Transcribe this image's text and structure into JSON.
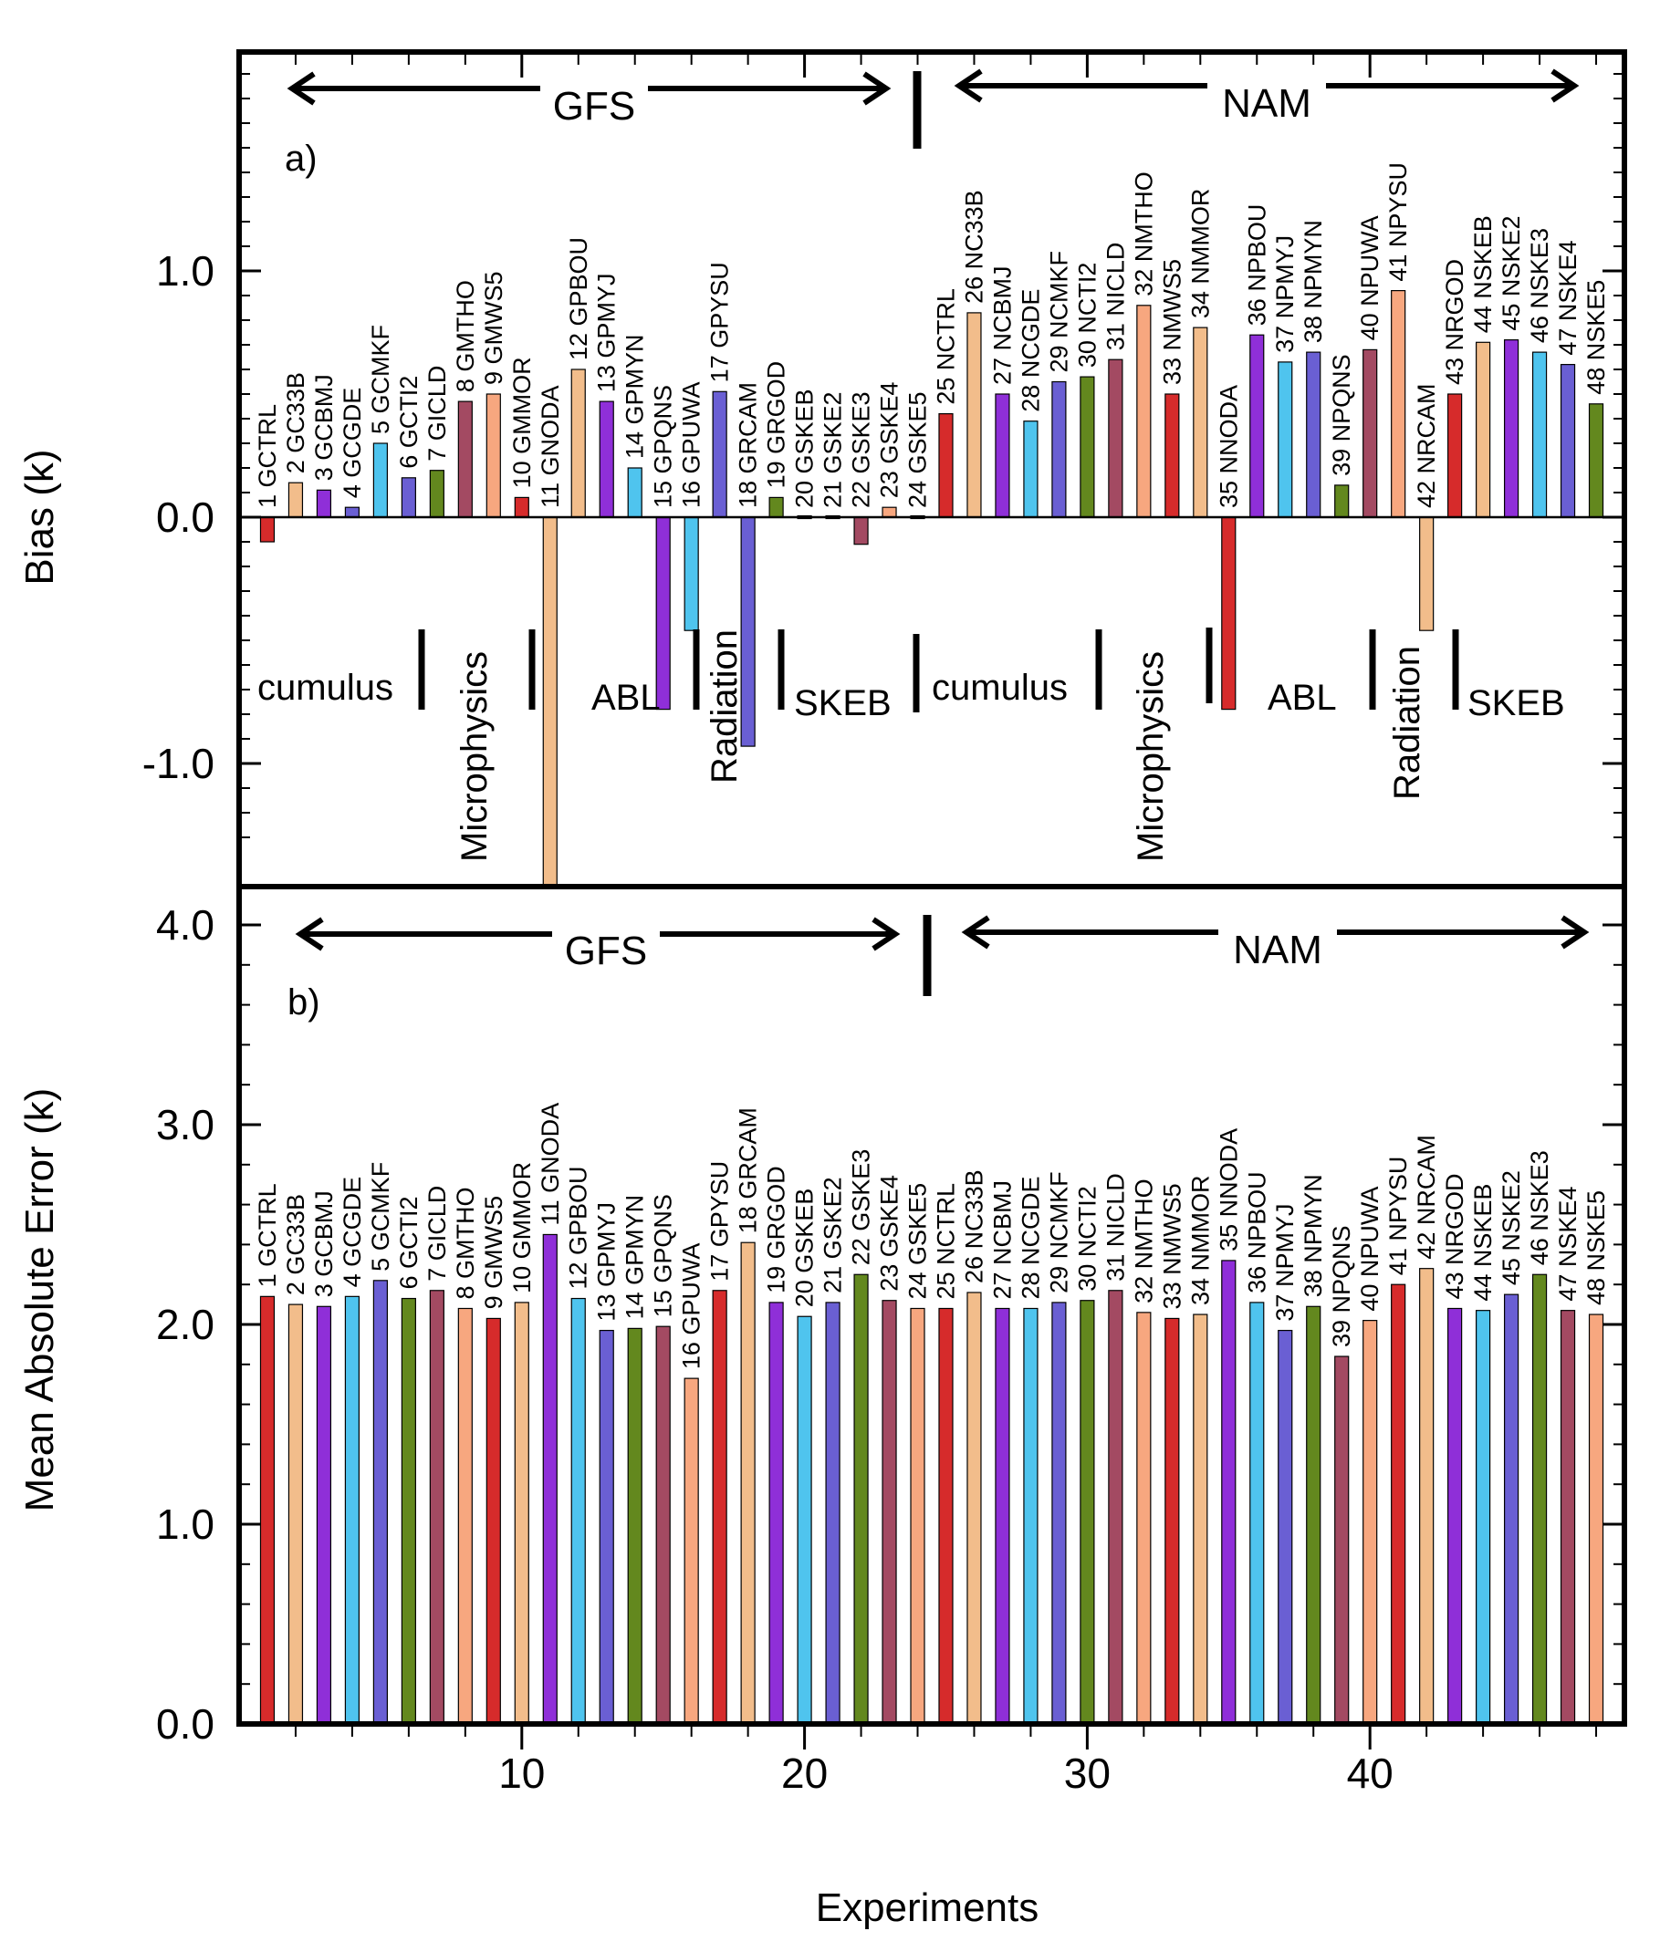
{
  "chart_data": [
    {
      "panel": "a)",
      "type": "bar",
      "ylabel": "Bias (k)",
      "ylim": [
        -1.4,
        1.9
      ],
      "yticks": [
        1.0,
        0.0,
        -1.0
      ],
      "ytick_labels": [
        "1.0",
        "0.0",
        "-1.0"
      ],
      "xlim": [
        0,
        49
      ],
      "labels": [
        "1 GCTRL",
        "2 GC33B",
        "3 GCBMJ",
        "4 GCGDE",
        "5 GCMKF",
        "6 GCTI2",
        "7 GICLD",
        "8 GMTHO",
        "9 GMWS5",
        "10 GMMOR",
        "11 GNODA",
        "12 GPBOU",
        "13 GPMYJ",
        "14 GPMYN",
        "15 GPQNS",
        "16 GPUWA",
        "17 GPYSU",
        "18 GRCAM",
        "19 GRGOD",
        "20 GSKEB",
        "21 GSKE2",
        "22 GSKE3",
        "23 GSKE4",
        "24 GSKE5",
        "25 NCTRL",
        "26 NC33B",
        "27 NCBMJ",
        "28 NCGDE",
        "29 NCMKF",
        "30 NCTI2",
        "31 NICLD",
        "32 NMTHO",
        "33 NMWS5",
        "34 NMMOR",
        "35 NNODA",
        "36 NPBOU",
        "37 NPMYJ",
        "38 NPMYN",
        "39 NPQNS",
        "40 NPUWA",
        "41 NPYSU",
        "42 NRCAM",
        "43 NRGOD",
        "44 NSKEB",
        "45 NSKE2",
        "46 NSKE3",
        "47 NSKE4",
        "48 NSKE5"
      ],
      "values": [
        -0.1,
        0.14,
        0.11,
        0.04,
        0.3,
        0.16,
        0.19,
        0.47,
        0.5,
        0.08,
        -1.5,
        0.6,
        0.47,
        0.2,
        -0.78,
        -0.46,
        0.51,
        -0.93,
        0.08,
        0.0,
        0.0,
        -0.11,
        0.04,
        0.0,
        0.42,
        0.83,
        0.5,
        0.39,
        0.55,
        0.57,
        0.64,
        0.86,
        0.5,
        0.77,
        -0.78,
        0.74,
        0.63,
        0.67,
        0.13,
        0.68,
        0.92,
        -0.46,
        0.5,
        0.71,
        0.72,
        0.67,
        0.62,
        0.46
      ],
      "colors": [
        "#d62b2b",
        "#f2bd8b",
        "#8f2fd8",
        "#6a5fd3",
        "#4fc4ee",
        "#6a5fd3",
        "#63881e",
        "#a34a62",
        "#f7a77f",
        "#d62b2b",
        "#f2bd8b",
        "#f2bd8b",
        "#8f2fd8",
        "#4fc4ee",
        "#8f2fd8",
        "#4fc4ee",
        "#6a5fd3",
        "#6a5fd3",
        "#63881e",
        "#4fc4ee",
        "#4fc4ee",
        "#a34a62",
        "#f7a77f",
        "#f2bd8b",
        "#d62b2b",
        "#f2bd8b",
        "#8f2fd8",
        "#4fc4ee",
        "#6a5fd3",
        "#63881e",
        "#a34a62",
        "#f7a77f",
        "#d62b2b",
        "#f2bd8b",
        "#d62b2b",
        "#8f2fd8",
        "#4fc4ee",
        "#6a5fd3",
        "#63881e",
        "#a34a62",
        "#f7a77f",
        "#f2bd8b",
        "#d62b2b",
        "#f2bd8b",
        "#8f2fd8",
        "#4fc4ee",
        "#6a5fd3",
        "#63881e"
      ],
      "models": [
        "GFS",
        "NAM"
      ],
      "groups": [
        "cumulus",
        "Microphysics",
        "ABL",
        "Radiation",
        "SKEB",
        "cumulus",
        "Microphysics",
        "ABL",
        "Radiation",
        "SKEB"
      ]
    },
    {
      "panel": "b)",
      "type": "bar",
      "ylabel": "Mean Absolute Error (k)",
      "xlabel": "Experiments",
      "ylim": [
        0.0,
        4.0
      ],
      "yticks": [
        4.0,
        3.0,
        2.0,
        1.0,
        0.0
      ],
      "ytick_labels": [
        "4.0",
        "3.0",
        "2.0",
        "1.0",
        "0.0"
      ],
      "xlim": [
        0,
        49
      ],
      "xticks": [
        10,
        20,
        30,
        40
      ],
      "xtick_labels": [
        "10",
        "20",
        "30",
        "40"
      ],
      "labels": [
        "1 GCTRL",
        "2 GC33B",
        "3 GCBMJ",
        "4 GCGDE",
        "5 GCMKF",
        "6 GCTI2",
        "7 GICLD",
        "8 GMTHO",
        "9 GMWS5",
        "10 GMMOR",
        "11 GNODA",
        "12 GPBOU",
        "13 GPMYJ",
        "14 GPMYN",
        "15 GPQNS",
        "16 GPUWA",
        "17 GPYSU",
        "18 GRCAM",
        "19 GRGOD",
        "20 GSKEB",
        "21 GSKE2",
        "22 GSKE3",
        "23 GSKE4",
        "24 GSKE5",
        "25 NCTRL",
        "26 NC33B",
        "27 NCBMJ",
        "28 NCGDE",
        "29 NCMKF",
        "30 NCTI2",
        "31 NICLD",
        "32 NMTHO",
        "33 NMWS5",
        "34 NMMOR",
        "35 NNODA",
        "36 NPBOU",
        "37 NPMYJ",
        "38 NPMYN",
        "39 NPQNS",
        "40 NPUWA",
        "41 NPYSU",
        "42 NRCAM",
        "43 NRGOD",
        "44 NSKEB",
        "45 NSKE2",
        "46 NSKE3",
        "47 NSKE4",
        "48 NSKE5"
      ],
      "values": [
        2.14,
        2.1,
        2.09,
        2.14,
        2.22,
        2.13,
        2.17,
        2.08,
        2.03,
        2.11,
        2.45,
        2.13,
        1.97,
        1.98,
        1.99,
        1.73,
        2.17,
        2.41,
        2.11,
        2.04,
        2.11,
        2.25,
        2.12,
        2.08,
        2.08,
        2.16,
        2.08,
        2.08,
        2.11,
        2.12,
        2.17,
        2.06,
        2.03,
        2.05,
        2.32,
        2.11,
        1.97,
        2.09,
        1.84,
        2.02,
        2.2,
        2.28,
        2.08,
        2.07,
        2.15,
        2.25,
        2.07,
        2.05
      ],
      "colors": [
        "#d62b2b",
        "#f2bd8b",
        "#8f2fd8",
        "#4fc4ee",
        "#6a5fd3",
        "#63881e",
        "#a34a62",
        "#f7a77f",
        "#d62b2b",
        "#f2bd8b",
        "#8f2fd8",
        "#4fc4ee",
        "#6a5fd3",
        "#63881e",
        "#a34a62",
        "#f7a77f",
        "#d62b2b",
        "#f2bd8b",
        "#8f2fd8",
        "#4fc4ee",
        "#6a5fd3",
        "#63881e",
        "#a34a62",
        "#f7a77f",
        "#d62b2b",
        "#f2bd8b",
        "#8f2fd8",
        "#4fc4ee",
        "#6a5fd3",
        "#63881e",
        "#a34a62",
        "#f7a77f",
        "#d62b2b",
        "#f2bd8b",
        "#8f2fd8",
        "#4fc4ee",
        "#6a5fd3",
        "#63881e",
        "#a34a62",
        "#f7a77f",
        "#d62b2b",
        "#f2bd8b",
        "#8f2fd8",
        "#4fc4ee",
        "#6a5fd3",
        "#63881e",
        "#a34a62",
        "#f7a77f"
      ],
      "models": [
        "GFS",
        "NAM"
      ]
    }
  ]
}
